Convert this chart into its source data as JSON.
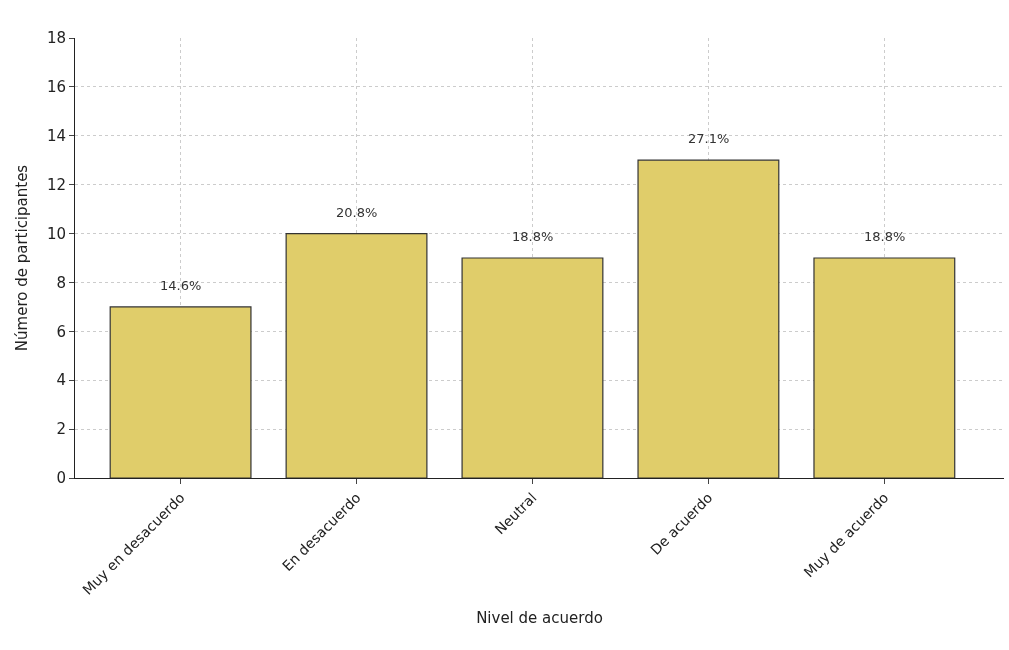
{
  "chart_data": {
    "type": "bar",
    "xlabel": "Nivel de acuerdo",
    "ylabel": "Número de participantes",
    "categories": [
      "Muy en desacuerdo",
      "En desacuerdo",
      "Neutral",
      "De acuerdo",
      "Muy de acuerdo"
    ],
    "values": [
      7,
      10,
      9,
      13,
      9
    ],
    "annotations": [
      {
        "text": "14.6%",
        "x": "Muy en desacuerdo",
        "y": 7
      },
      {
        "text": "20.8%",
        "x": "En desacuerdo",
        "y": 10
      },
      {
        "text": "18.8%",
        "x": "Neutral",
        "y": 9
      },
      {
        "text": "27.1%",
        "x": "De acuerdo",
        "y": 13
      },
      {
        "text": "18.8%",
        "x": "Muy de acuerdo",
        "y": 9
      }
    ],
    "color": "#e0cd6a",
    "ylim": [
      0,
      18
    ],
    "yticks": [
      0,
      2,
      4,
      6,
      8,
      10,
      12,
      14,
      16,
      18
    ],
    "grid": true,
    "legend": false
  }
}
